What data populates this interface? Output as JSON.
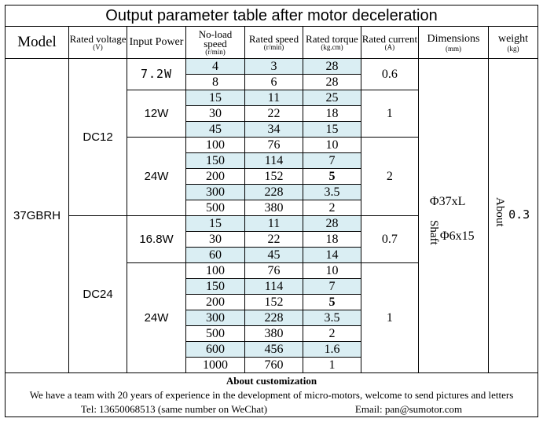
{
  "title": "Output parameter table after motor deceleration",
  "headers": {
    "model": "Model",
    "voltage": "Rated voltage",
    "voltage_unit": "(V)",
    "power": "Input Power",
    "noload": "No-load speed",
    "noload_unit": "(r/min)",
    "rspeed": "Rated speed",
    "rspeed_unit": "(r/min)",
    "torque": "Rated torque",
    "torque_unit": "(kg.cm)",
    "current": "Rated current",
    "current_unit": "(A)",
    "dimensions": "Dimensions",
    "dimensions_unit": "(mm)",
    "weight": "weight",
    "weight_unit": "(kg)"
  },
  "model": "37GBRH",
  "voltages": [
    "DC12",
    "DC24"
  ],
  "powers": [
    "7.2W",
    "12W",
    "24W",
    "16.8W",
    "24W"
  ],
  "currents": [
    "0.6",
    "1",
    "2",
    "0.7",
    "1"
  ],
  "rows": [
    {
      "noload": "4",
      "speed": "3",
      "torque": "28"
    },
    {
      "noload": "8",
      "speed": "6",
      "torque": "28"
    },
    {
      "noload": "15",
      "speed": "11",
      "torque": "25"
    },
    {
      "noload": "30",
      "speed": "22",
      "torque": "18"
    },
    {
      "noload": "45",
      "speed": "34",
      "torque": "15"
    },
    {
      "noload": "100",
      "speed": "76",
      "torque": "10"
    },
    {
      "noload": "150",
      "speed": "114",
      "torque": "7"
    },
    {
      "noload": "200",
      "speed": "152",
      "torque": "5"
    },
    {
      "noload": "300",
      "speed": "228",
      "torque": "3.5"
    },
    {
      "noload": "500",
      "speed": "380",
      "torque": "2"
    },
    {
      "noload": "15",
      "speed": "11",
      "torque": "28"
    },
    {
      "noload": "30",
      "speed": "22",
      "torque": "18"
    },
    {
      "noload": "60",
      "speed": "45",
      "torque": "14"
    },
    {
      "noload": "100",
      "speed": "76",
      "torque": "10"
    },
    {
      "noload": "150",
      "speed": "114",
      "torque": "7"
    },
    {
      "noload": "200",
      "speed": "152",
      "torque": "5"
    },
    {
      "noload": "300",
      "speed": "228",
      "torque": "3.5"
    },
    {
      "noload": "500",
      "speed": "380",
      "torque": "2"
    },
    {
      "noload": "600",
      "speed": "456",
      "torque": "1.6"
    },
    {
      "noload": "1000",
      "speed": "760",
      "torque": "1"
    }
  ],
  "dimensions": {
    "main": "Φ37xL",
    "shaft": "Shaft",
    "shaft_size": "Φ6x15"
  },
  "weight": {
    "about": "About",
    "value": "0.3"
  },
  "footer": {
    "title": "About customization",
    "message": "We have a team with 20 years of experience in the development of micro-motors, welcome to send pictures and letters",
    "tel": "Tel: 13650068513 (same number on WeChat)",
    "email": "Email: pan@sumotor.com"
  }
}
